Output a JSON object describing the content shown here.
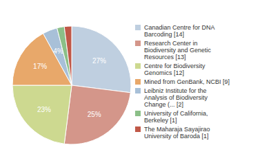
{
  "chart_data": {
    "type": "pie",
    "categories": [
      "Canadian Centre for DNA\nBarcoding [14]",
      "Research Center in\nBiodiversity and Genetic\nResources [13]",
      "Centre for Biodiversity\nGenomics [12]",
      "Mined from GenBank, NCBI [9]",
      "Leibniz Institute for the\nAnalysis of Biodiversity\nChange (... [2]",
      "University of California,\nBerkeley [1]",
      "The Maharaja Sayajirao\nUniversity of Baroda [1]"
    ],
    "values": [
      27,
      25,
      23,
      17,
      4,
      2,
      2
    ],
    "value_labels": [
      "27%",
      "25%",
      "23%",
      "17%",
      "4%",
      null,
      null
    ],
    "data_labels": true,
    "colors": [
      "#bfcfe0",
      "#d4968a",
      "#cdd990",
      "#e8a86a",
      "#a8c0d8",
      "#8bbf88",
      "#c05848"
    ],
    "legend": "right"
  }
}
